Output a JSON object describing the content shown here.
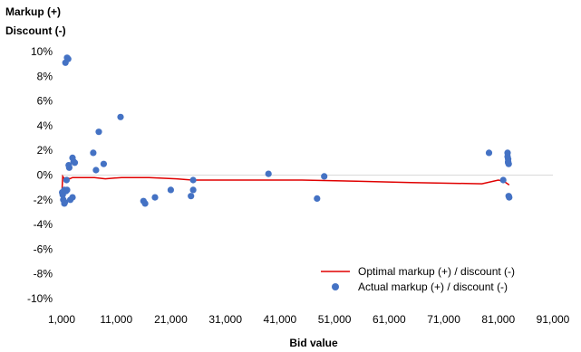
{
  "chart_data": {
    "type": "scatter",
    "xlabel": "Bid value",
    "ylabel_lines": [
      "Markup (+)",
      "Discount (-)"
    ],
    "xlim": [
      1000,
      91000
    ],
    "ylim": [
      -10,
      10
    ],
    "x_ticks": [
      1000,
      11000,
      21000,
      31000,
      41000,
      51000,
      61000,
      71000,
      81000,
      91000
    ],
    "x_tick_labels": [
      "1,000",
      "11,000",
      "21,000",
      "31,000",
      "41,000",
      "51,000",
      "61,000",
      "71,000",
      "81,000",
      "91,000"
    ],
    "y_ticks": [
      10,
      8,
      6,
      4,
      2,
      0,
      -2,
      -4,
      -6,
      -8,
      -10
    ],
    "y_tick_labels": [
      "10%",
      "8%",
      "6%",
      "4%",
      "2%",
      "0%",
      "-2%",
      "-4%",
      "-6%",
      "-8%",
      "-10%"
    ],
    "grid": false,
    "zero_line": true,
    "legend_position": "bottom-right",
    "series": [
      {
        "name": "Optimal markup (+) / discount (-)",
        "kind": "line",
        "color": "#e00000",
        "x": [
          1000,
          1200,
          1500,
          2000,
          2500,
          3000,
          4000,
          5000,
          7000,
          9000,
          12000,
          17000,
          22000,
          25000,
          35000,
          45000,
          55000,
          65000,
          78000,
          81000,
          82000,
          83000
        ],
        "y": [
          -1.8,
          -0.1,
          -0.3,
          -0.2,
          -0.3,
          -0.2,
          -0.2,
          -0.2,
          -0.2,
          -0.3,
          -0.2,
          -0.2,
          -0.3,
          -0.4,
          -0.4,
          -0.4,
          -0.5,
          -0.6,
          -0.7,
          -0.4,
          -0.5,
          -0.8
        ]
      },
      {
        "name": "Actual markup (+) / discount (-)",
        "kind": "scatter",
        "color": "#4472c4",
        "x": [
          1700,
          2200,
          2000,
          2300,
          2400,
          1500,
          1800,
          1900,
          3000,
          3200,
          3400,
          6800,
          7300,
          8700,
          7800,
          11800,
          1100,
          1200,
          1300,
          1600,
          1500,
          2600,
          3000,
          2000,
          16000,
          16300,
          18100,
          21000,
          24700,
          25100,
          25100,
          38900,
          47800,
          49100,
          79300,
          81900,
          82700,
          82700,
          82800,
          82800,
          82800,
          82900,
          83000,
          82900
        ],
        "y": [
          9.1,
          9.4,
          9.5,
          0.8,
          0.6,
          -1.2,
          -1.3,
          -0.4,
          1.4,
          1.1,
          1.0,
          1.8,
          0.4,
          0.9,
          3.5,
          4.7,
          -1.4,
          -1.6,
          -2.0,
          -2.2,
          -2.3,
          -2.0,
          -1.8,
          -1.2,
          -2.1,
          -2.3,
          -1.8,
          -1.2,
          -1.7,
          -1.2,
          -0.4,
          0.1,
          -1.9,
          -0.1,
          1.8,
          -0.4,
          1.8,
          1.5,
          1.3,
          1.1,
          1.0,
          0.9,
          -1.8,
          -1.7
        ]
      }
    ]
  }
}
